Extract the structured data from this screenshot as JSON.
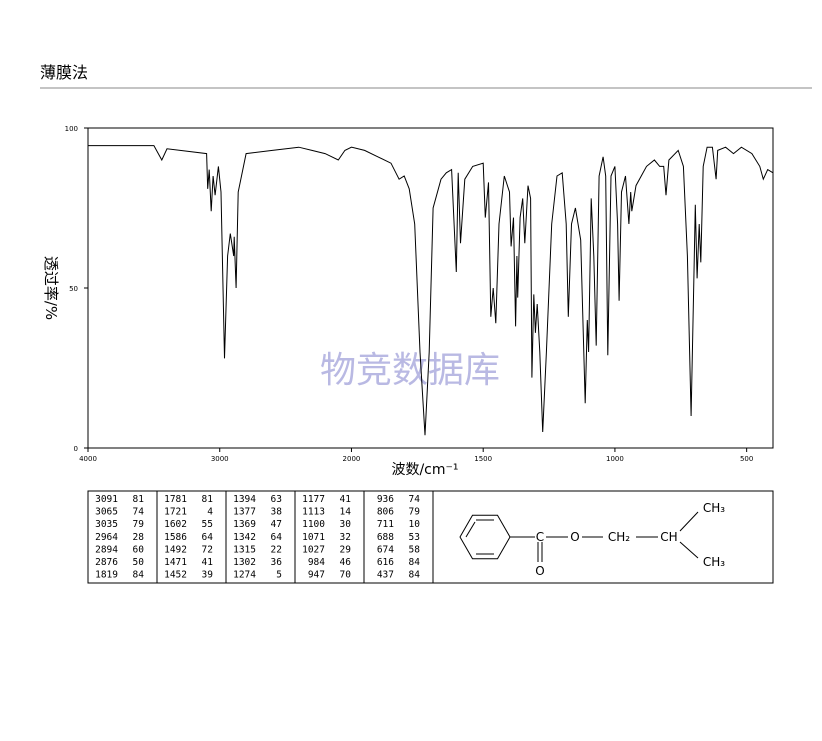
{
  "header": {
    "title": "薄膜法"
  },
  "chart_data": {
    "type": "line",
    "x_label": "波数/cm⁻¹",
    "y_label": "透过率/%",
    "watermark": "物竞数据库",
    "xlim": [
      4000,
      400
    ],
    "x_break": 2000,
    "ylim": [
      0,
      100
    ],
    "xticks": [
      4000,
      3000,
      2000,
      1500,
      1000,
      500
    ],
    "yticks": [
      0,
      50,
      100
    ],
    "color": "#000000",
    "x": [
      4000,
      3500,
      3440,
      3400,
      3100,
      3091,
      3080,
      3065,
      3050,
      3035,
      3010,
      2990,
      2964,
      2940,
      2920,
      2894,
      2890,
      2876,
      2860,
      2800,
      2600,
      2400,
      2300,
      2200,
      2100,
      2050,
      2000,
      1950,
      1900,
      1850,
      1819,
      1800,
      1781,
      1760,
      1740,
      1721,
      1705,
      1690,
      1660,
      1640,
      1620,
      1602,
      1595,
      1586,
      1570,
      1540,
      1500,
      1492,
      1480,
      1471,
      1462,
      1452,
      1440,
      1420,
      1400,
      1394,
      1385,
      1377,
      1372,
      1369,
      1360,
      1350,
      1342,
      1330,
      1320,
      1315,
      1308,
      1302,
      1295,
      1285,
      1274,
      1260,
      1240,
      1220,
      1200,
      1185,
      1177,
      1165,
      1150,
      1130,
      1113,
      1105,
      1100,
      1090,
      1080,
      1071,
      1060,
      1045,
      1035,
      1027,
      1015,
      1000,
      990,
      984,
      975,
      960,
      947,
      940,
      936,
      920,
      880,
      850,
      830,
      815,
      806,
      795,
      760,
      740,
      725,
      711,
      700,
      695,
      688,
      680,
      674,
      665,
      650,
      630,
      616,
      610,
      580,
      550,
      520,
      480,
      450,
      437,
      420,
      400
    ],
    "values": [
      94.5,
      94.5,
      90,
      93.5,
      92,
      81,
      87,
      74,
      85,
      79,
      88,
      80,
      28,
      60,
      67,
      60,
      66,
      50,
      80,
      92,
      93,
      94,
      93,
      92,
      90,
      93,
      94,
      93,
      91,
      89,
      84,
      85,
      81,
      70,
      30,
      4,
      30,
      75,
      84,
      86,
      87,
      55,
      86,
      64,
      84,
      88,
      89,
      72,
      83,
      41,
      50,
      39,
      70,
      85,
      80,
      63,
      72,
      38,
      60,
      47,
      72,
      78,
      64,
      82,
      78,
      22,
      48,
      36,
      45,
      30,
      5,
      30,
      70,
      85,
      86,
      70,
      41,
      70,
      75,
      65,
      14,
      40,
      30,
      78,
      60,
      32,
      85,
      91,
      85,
      29,
      85,
      88,
      70,
      46,
      80,
      85,
      70,
      80,
      74,
      82,
      88,
      90,
      88,
      88,
      79,
      90,
      93,
      88,
      60,
      10,
      55,
      76,
      53,
      70,
      58,
      88,
      94,
      94,
      84,
      93,
      94,
      92,
      94,
      92,
      88,
      84,
      87,
      86
    ]
  },
  "peak_table": [
    [
      [
        3091,
        81
      ],
      [
        3065,
        74
      ],
      [
        3035,
        79
      ],
      [
        2964,
        28
      ],
      [
        2894,
        60
      ],
      [
        2876,
        50
      ],
      [
        1819,
        84
      ]
    ],
    [
      [
        1781,
        81
      ],
      [
        1721,
        4
      ],
      [
        1602,
        55
      ],
      [
        1586,
        64
      ],
      [
        1492,
        72
      ],
      [
        1471,
        41
      ],
      [
        1452,
        39
      ]
    ],
    [
      [
        1394,
        63
      ],
      [
        1377,
        38
      ],
      [
        1369,
        47
      ],
      [
        1342,
        64
      ],
      [
        1315,
        22
      ],
      [
        1302,
        36
      ],
      [
        1274,
        5
      ]
    ],
    [
      [
        1177,
        41
      ],
      [
        1113,
        14
      ],
      [
        1100,
        30
      ],
      [
        1071,
        32
      ],
      [
        1027,
        29
      ],
      [
        984,
        46
      ],
      [
        947,
        70
      ]
    ],
    [
      [
        936,
        74
      ],
      [
        806,
        79
      ],
      [
        711,
        10
      ],
      [
        688,
        53
      ],
      [
        674,
        58
      ],
      [
        616,
        84
      ],
      [
        437,
        84
      ]
    ]
  ],
  "structure": {
    "carbonyl_c": "C",
    "carbonyl_o": "O",
    "ester_o": "O",
    "ch2": "CH₂",
    "ch": "CH",
    "ch3_top": "CH₃",
    "ch3_bottom": "CH₃"
  }
}
